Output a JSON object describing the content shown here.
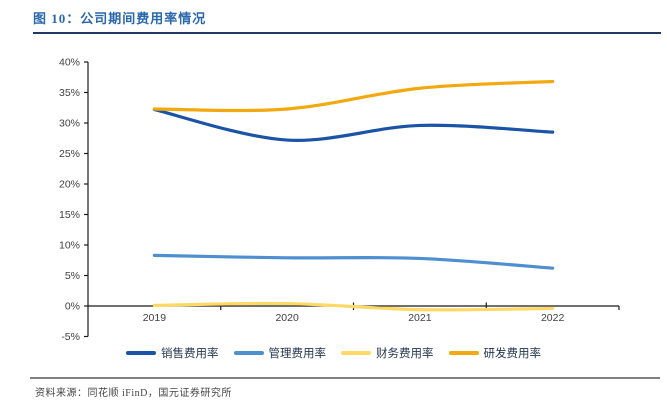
{
  "page": {
    "title": "图 10：公司期间费用率情况",
    "source": "资料来源：同花顺 iFinD，国元证券研究所"
  },
  "chart_data": {
    "type": "line",
    "title": "公司期间费用率情况",
    "categories": [
      "2019",
      "2020",
      "2021",
      "2022"
    ],
    "series": [
      {
        "name": "销售费用率",
        "color": "#1B54A6",
        "values": [
          32.2,
          27.2,
          29.6,
          28.5
        ]
      },
      {
        "name": "管理费用率",
        "color": "#4E8FD0",
        "values": [
          8.3,
          7.9,
          7.8,
          6.2
        ]
      },
      {
        "name": "财务费用率",
        "color": "#FFD966",
        "values": [
          0.1,
          0.4,
          -0.6,
          -0.4
        ]
      },
      {
        "name": "研发费用率",
        "color": "#F2A90F",
        "values": [
          32.3,
          32.3,
          35.7,
          36.8
        ]
      }
    ],
    "ylim": [
      -5,
      40
    ],
    "ytick_step": 5,
    "ytick_suffix": "%",
    "grid": false,
    "line_smooth": true,
    "legend_position": "bottom",
    "axis_color": "#1a1a1a",
    "tick_label_color": "#404040"
  }
}
